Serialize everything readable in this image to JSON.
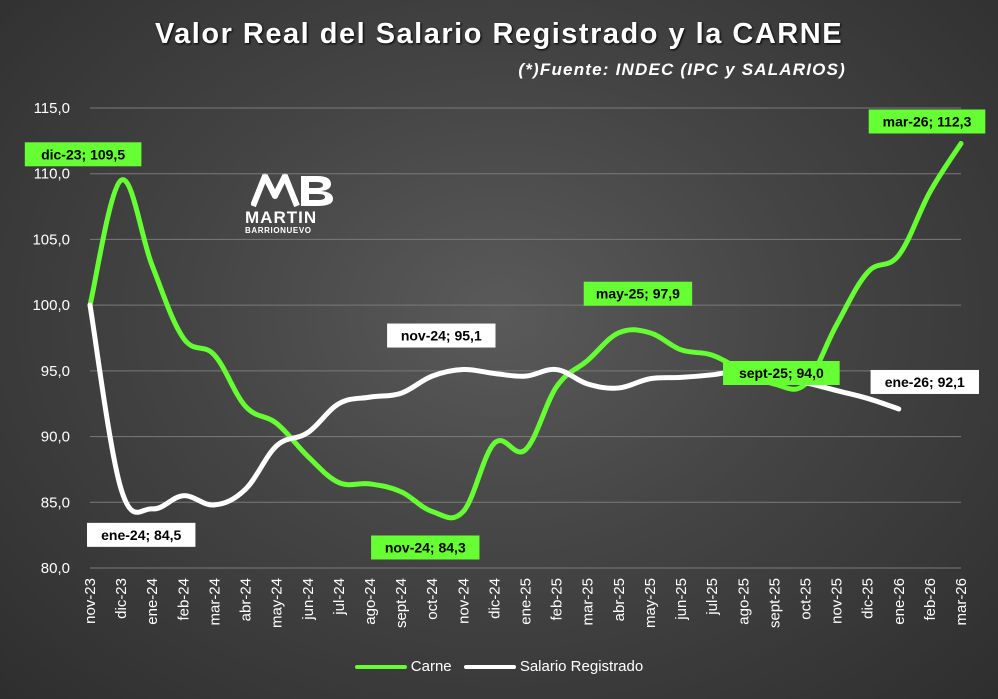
{
  "chart_data": {
    "type": "line",
    "title": "Valor Real del Salario Registrado y la CARNE",
    "subtitle": "(*)Fuente: INDEC (IPC y SALARIOS)",
    "categories": [
      "nov-23",
      "dic-23",
      "ene-24",
      "feb-24",
      "mar-24",
      "abr-24",
      "may-24",
      "jun-24",
      "jul-24",
      "ago-24",
      "sept-24",
      "oct-24",
      "nov-24",
      "dic-24",
      "ene-25",
      "feb-25",
      "mar-25",
      "abr-25",
      "may-25",
      "jun-25",
      "jul-25",
      "ago-25",
      "sept-25",
      "oct-25",
      "nov-25",
      "dic-25",
      "ene-26",
      "feb-26",
      "mar-26"
    ],
    "ylim": [
      80,
      115
    ],
    "yticks": [
      "80,0",
      "85,0",
      "90,0",
      "95,0",
      "100,0",
      "105,0",
      "110,0",
      "115,0"
    ],
    "grid": true,
    "legend_position": "bottom",
    "series": [
      {
        "name": "Carne",
        "color": "#66ff33",
        "values": [
          100.0,
          109.5,
          103.0,
          97.5,
          96.2,
          92.3,
          91.0,
          88.5,
          86.5,
          86.4,
          85.8,
          84.3,
          84.3,
          89.5,
          89.0,
          93.8,
          95.8,
          97.9,
          97.9,
          96.6,
          96.2,
          95.0,
          94.0,
          94.0,
          98.5,
          102.5,
          103.8,
          108.6,
          112.3
        ]
      },
      {
        "name": "Salario Registrado",
        "color": "#ffffff",
        "values": [
          100.0,
          86.0,
          84.5,
          85.5,
          84.8,
          86.0,
          89.3,
          90.3,
          92.5,
          93.0,
          93.3,
          94.6,
          95.1,
          94.8,
          94.6,
          95.1,
          94.0,
          93.7,
          94.4,
          94.5,
          94.7,
          95.0,
          94.5,
          94.1,
          93.5,
          92.9,
          92.1,
          null,
          null
        ]
      }
    ],
    "annotations": [
      {
        "series": 0,
        "index": 1,
        "text": "dic-23; 109,5"
      },
      {
        "series": 0,
        "index": 12,
        "text": "nov-24; 84,3"
      },
      {
        "series": 0,
        "index": 18,
        "text": "may-25; 97,9"
      },
      {
        "series": 0,
        "index": 22,
        "text": "sept-25; 94,0"
      },
      {
        "series": 0,
        "index": 28,
        "text": "mar-26; 112,3"
      },
      {
        "series": 1,
        "index": 2,
        "text": "ene-24; 84,5"
      },
      {
        "series": 1,
        "index": 12,
        "text": "nov-24; 95,1"
      },
      {
        "series": 1,
        "index": 26,
        "text": "ene-26; 92,1"
      }
    ]
  },
  "logo": {
    "text1": "MARTIN",
    "text2": "BARRIONUEVO"
  }
}
